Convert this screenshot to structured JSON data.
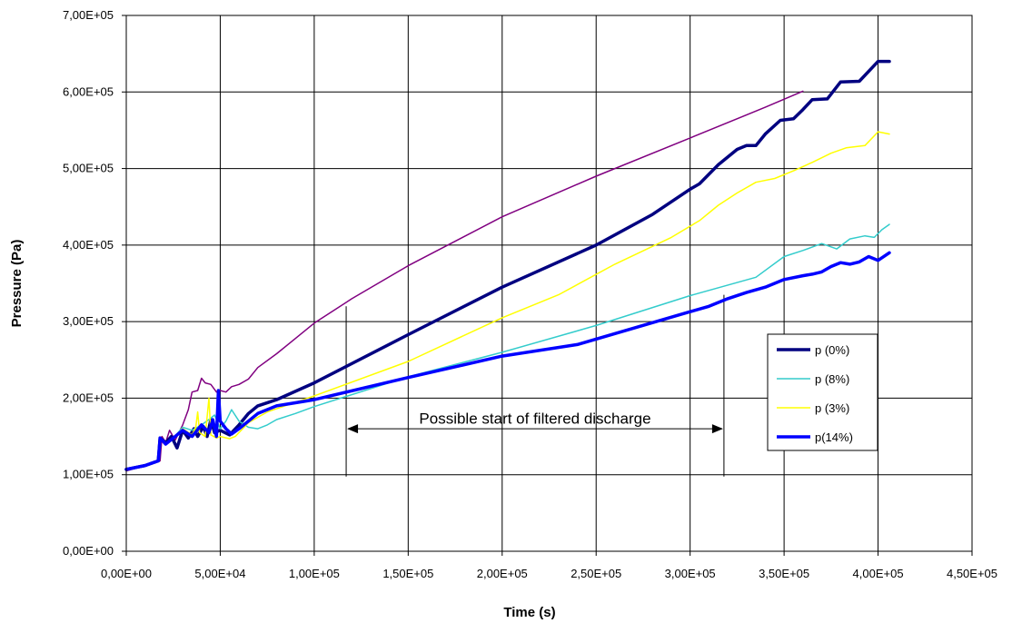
{
  "chart_data": {
    "type": "line",
    "title": "",
    "xlabel": "Time (s)",
    "ylabel": "Pressure (Pa)",
    "xlim": [
      0,
      450000
    ],
    "ylim": [
      0,
      700000
    ],
    "grid": true,
    "legend_position": "right",
    "x_ticks": [
      {
        "value": 0,
        "label": "0,00E+00"
      },
      {
        "value": 50000,
        "label": "5,00E+04"
      },
      {
        "value": 100000,
        "label": "1,00E+05"
      },
      {
        "value": 150000,
        "label": "1,50E+05"
      },
      {
        "value": 200000,
        "label": "2,00E+05"
      },
      {
        "value": 250000,
        "label": "2,50E+05"
      },
      {
        "value": 300000,
        "label": "3,00E+05"
      },
      {
        "value": 350000,
        "label": "3,50E+05"
      },
      {
        "value": 400000,
        "label": "4,00E+05"
      },
      {
        "value": 450000,
        "label": "4,50E+05"
      }
    ],
    "y_ticks": [
      {
        "value": 0,
        "label": "0,00E+00"
      },
      {
        "value": 100000,
        "label": "1,00E+05"
      },
      {
        "value": 200000,
        "label": "2,00E+05"
      },
      {
        "value": 300000,
        "label": "3,00E+05"
      },
      {
        "value": 400000,
        "label": "4,00E+05"
      },
      {
        "value": 500000,
        "label": "5,00E+05"
      },
      {
        "value": 600000,
        "label": "6,00E+05"
      },
      {
        "value": 700000,
        "label": "7,00E+05"
      }
    ],
    "series": [
      {
        "key": "unlabeled",
        "name": "",
        "color": "#800080",
        "width": 1.5,
        "in_legend": false,
        "points": [
          [
            0,
            105000
          ],
          [
            10000,
            112000
          ],
          [
            18000,
            118000
          ],
          [
            19000,
            150000
          ],
          [
            21000,
            142000
          ],
          [
            23000,
            158000
          ],
          [
            26000,
            145000
          ],
          [
            30000,
            165000
          ],
          [
            33000,
            185000
          ],
          [
            35000,
            208000
          ],
          [
            38000,
            210000
          ],
          [
            40000,
            226000
          ],
          [
            42000,
            220000
          ],
          [
            45000,
            218000
          ],
          [
            48000,
            208000
          ],
          [
            50000,
            210000
          ],
          [
            53000,
            208000
          ],
          [
            56000,
            215000
          ],
          [
            60000,
            218000
          ],
          [
            65000,
            225000
          ],
          [
            70000,
            240000
          ],
          [
            80000,
            258000
          ],
          [
            90000,
            278000
          ],
          [
            100000,
            298000
          ],
          [
            120000,
            330000
          ],
          [
            150000,
            373000
          ],
          [
            200000,
            437000
          ],
          [
            250000,
            490000
          ],
          [
            300000,
            540000
          ],
          [
            340000,
            580000
          ],
          [
            360000,
            601000
          ]
        ]
      },
      {
        "key": "p0",
        "name": "p (0%)",
        "color": "#000080",
        "width": 3.5,
        "in_legend": true,
        "points": [
          [
            0,
            107000
          ],
          [
            10000,
            112000
          ],
          [
            17000,
            118000
          ],
          [
            18000,
            148000
          ],
          [
            21000,
            142000
          ],
          [
            24000,
            150000
          ],
          [
            27000,
            135000
          ],
          [
            30000,
            158000
          ],
          [
            33000,
            148000
          ],
          [
            36000,
            160000
          ],
          [
            38000,
            150000
          ],
          [
            41000,
            163000
          ],
          [
            43000,
            150000
          ],
          [
            45000,
            172000
          ],
          [
            47000,
            155000
          ],
          [
            50000,
            158000
          ],
          [
            55000,
            152000
          ],
          [
            60000,
            165000
          ],
          [
            65000,
            180000
          ],
          [
            70000,
            190000
          ],
          [
            80000,
            198000
          ],
          [
            100000,
            220000
          ],
          [
            150000,
            283000
          ],
          [
            200000,
            345000
          ],
          [
            250000,
            400000
          ],
          [
            280000,
            440000
          ],
          [
            300000,
            473000
          ],
          [
            305000,
            480000
          ],
          [
            315000,
            505000
          ],
          [
            325000,
            525000
          ],
          [
            330000,
            530000
          ],
          [
            335000,
            530000
          ],
          [
            340000,
            545000
          ],
          [
            348000,
            563000
          ],
          [
            355000,
            565000
          ],
          [
            360000,
            577000
          ],
          [
            365000,
            590000
          ],
          [
            373000,
            591000
          ],
          [
            380000,
            613000
          ],
          [
            390000,
            614000
          ],
          [
            400000,
            640000
          ],
          [
            406000,
            640000
          ]
        ]
      },
      {
        "key": "p8",
        "name": "p (8%)",
        "color": "#33CCCC",
        "width": 1.5,
        "in_legend": true,
        "points": [
          [
            0,
            107000
          ],
          [
            10000,
            112000
          ],
          [
            17000,
            118000
          ],
          [
            18000,
            148000
          ],
          [
            21000,
            140000
          ],
          [
            25000,
            148000
          ],
          [
            30000,
            162000
          ],
          [
            35000,
            158000
          ],
          [
            40000,
            165000
          ],
          [
            44000,
            172000
          ],
          [
            47000,
            178000
          ],
          [
            50000,
            160000
          ],
          [
            53000,
            170000
          ],
          [
            56000,
            185000
          ],
          [
            60000,
            170000
          ],
          [
            65000,
            162000
          ],
          [
            70000,
            160000
          ],
          [
            75000,
            165000
          ],
          [
            80000,
            172000
          ],
          [
            90000,
            180000
          ],
          [
            100000,
            189000
          ],
          [
            150000,
            228000
          ],
          [
            200000,
            260000
          ],
          [
            250000,
            295000
          ],
          [
            300000,
            334000
          ],
          [
            335000,
            358000
          ],
          [
            350000,
            385000
          ],
          [
            360000,
            393000
          ],
          [
            370000,
            402000
          ],
          [
            378000,
            395000
          ],
          [
            385000,
            408000
          ],
          [
            393000,
            412000
          ],
          [
            398000,
            410000
          ],
          [
            402000,
            420000
          ],
          [
            406000,
            427000
          ]
        ]
      },
      {
        "key": "p3",
        "name": "p (3%)",
        "color": "#FFFF00",
        "width": 1.5,
        "in_legend": true,
        "points": [
          [
            0,
            107000
          ],
          [
            10000,
            112000
          ],
          [
            17000,
            118000
          ],
          [
            18000,
            148000
          ],
          [
            21000,
            140000
          ],
          [
            25000,
            148000
          ],
          [
            30000,
            160000
          ],
          [
            35000,
            152000
          ],
          [
            37000,
            162000
          ],
          [
            38000,
            182000
          ],
          [
            39000,
            155000
          ],
          [
            42000,
            150000
          ],
          [
            44000,
            200000
          ],
          [
            45000,
            152000
          ],
          [
            48000,
            148000
          ],
          [
            50000,
            150000
          ],
          [
            55000,
            147000
          ],
          [
            58000,
            150000
          ],
          [
            65000,
            168000
          ],
          [
            75000,
            182000
          ],
          [
            100000,
            203000
          ],
          [
            150000,
            248000
          ],
          [
            200000,
            305000
          ],
          [
            230000,
            335000
          ],
          [
            260000,
            375000
          ],
          [
            290000,
            410000
          ],
          [
            305000,
            432000
          ],
          [
            315000,
            452000
          ],
          [
            325000,
            468000
          ],
          [
            335000,
            482000
          ],
          [
            345000,
            487000
          ],
          [
            355000,
            497000
          ],
          [
            365000,
            508000
          ],
          [
            375000,
            520000
          ],
          [
            383000,
            527000
          ],
          [
            393000,
            530000
          ],
          [
            400000,
            548000
          ],
          [
            406000,
            545000
          ]
        ]
      },
      {
        "key": "p14",
        "name": "p(14%)",
        "color": "#0000FF",
        "width": 3.5,
        "in_legend": true,
        "points": [
          [
            0,
            107000
          ],
          [
            10000,
            112000
          ],
          [
            17000,
            118000
          ],
          [
            18000,
            148000
          ],
          [
            21000,
            140000
          ],
          [
            25000,
            148000
          ],
          [
            30000,
            158000
          ],
          [
            35000,
            150000
          ],
          [
            40000,
            165000
          ],
          [
            44000,
            155000
          ],
          [
            46000,
            172000
          ],
          [
            48000,
            150000
          ],
          [
            49000,
            210000
          ],
          [
            50000,
            170000
          ],
          [
            53000,
            160000
          ],
          [
            56000,
            153000
          ],
          [
            60000,
            160000
          ],
          [
            70000,
            180000
          ],
          [
            80000,
            190000
          ],
          [
            100000,
            198000
          ],
          [
            150000,
            227000
          ],
          [
            200000,
            255000
          ],
          [
            240000,
            270000
          ],
          [
            300000,
            313000
          ],
          [
            310000,
            320000
          ],
          [
            320000,
            330000
          ],
          [
            330000,
            338000
          ],
          [
            340000,
            345000
          ],
          [
            350000,
            355000
          ],
          [
            360000,
            360000
          ],
          [
            365000,
            362000
          ],
          [
            370000,
            365000
          ],
          [
            375000,
            372000
          ],
          [
            380000,
            377000
          ],
          [
            385000,
            375000
          ],
          [
            390000,
            378000
          ],
          [
            395000,
            385000
          ],
          [
            400000,
            380000
          ],
          [
            406000,
            390000
          ]
        ]
      }
    ],
    "annotations": [
      {
        "text": "Possible start of filtered discharge",
        "x_start": 117000,
        "x_end": 318000,
        "y": 160000
      }
    ]
  }
}
